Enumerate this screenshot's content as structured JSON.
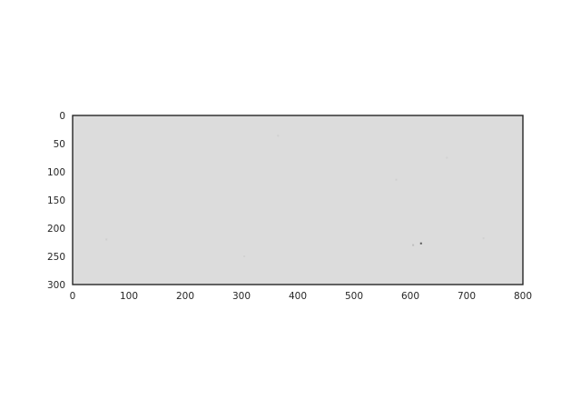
{
  "chart_data": {
    "type": "heatmap",
    "title": "",
    "xlabel": "",
    "ylabel": "",
    "xlim": [
      0,
      800
    ],
    "ylim": [
      300,
      0
    ],
    "y_axis_inverted": true,
    "x_ticks": [
      0,
      100,
      200,
      300,
      400,
      500,
      600,
      700,
      800
    ],
    "y_ticks": [
      0,
      50,
      100,
      150,
      200,
      250,
      300
    ],
    "x_tick_labels": [
      "0",
      "100",
      "200",
      "300",
      "400",
      "500",
      "600",
      "700",
      "800"
    ],
    "y_tick_labels": [
      "0",
      "50",
      "100",
      "150",
      "200",
      "250",
      "300"
    ],
    "image_fill_color": "#dcdcdc",
    "spine_color": "#262626",
    "grid": false,
    "specks": [
      {
        "x": 619,
        "y": 227,
        "color": "#555555"
      },
      {
        "x": 605,
        "y": 230,
        "color": "#bdbdbd"
      },
      {
        "x": 575,
        "y": 114,
        "color": "#cfcfcf"
      },
      {
        "x": 365,
        "y": 36,
        "color": "#d0d0d0"
      },
      {
        "x": 60,
        "y": 220,
        "color": "#cfcfcf"
      },
      {
        "x": 305,
        "y": 250,
        "color": "#d2d2d2"
      },
      {
        "x": 665,
        "y": 75,
        "color": "#d2d2d2"
      },
      {
        "x": 730,
        "y": 218,
        "color": "#d1d1d1"
      }
    ]
  }
}
